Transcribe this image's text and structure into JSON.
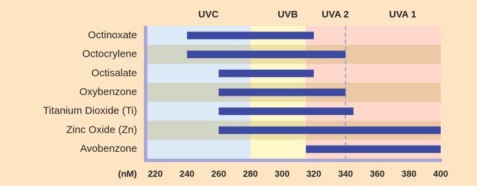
{
  "chart_data": {
    "type": "range_bar",
    "categories": [
      "Octinoxate",
      "Octocrylene",
      "Octisalate",
      "Oxybenzone",
      "Titanium Dioxide (Ti)",
      "Zinc Oxide (Zn)",
      "Avobenzone"
    ],
    "values": [
      [
        240,
        320
      ],
      [
        240,
        340
      ],
      [
        260,
        320
      ],
      [
        260,
        340
      ],
      [
        260,
        345
      ],
      [
        260,
        400
      ],
      [
        315,
        400
      ]
    ],
    "color": "#3c4aa1",
    "bands": [
      {
        "name": "UVC",
        "end": 280,
        "color": "#dce9f6"
      },
      {
        "name": "UVB",
        "end": 315,
        "color": "#fff8c9"
      },
      {
        "name": "UVA 2",
        "end": 340,
        "color": "#fdd8cb"
      },
      {
        "name": "UVA 1",
        "end": 400,
        "color": "#fdd8cb"
      }
    ],
    "divider": 340,
    "xlabel": "(nM)",
    "xlim": [
      215,
      400
    ],
    "xticks": [
      220,
      240,
      260,
      280,
      300,
      320,
      340,
      360,
      380,
      400
    ]
  }
}
